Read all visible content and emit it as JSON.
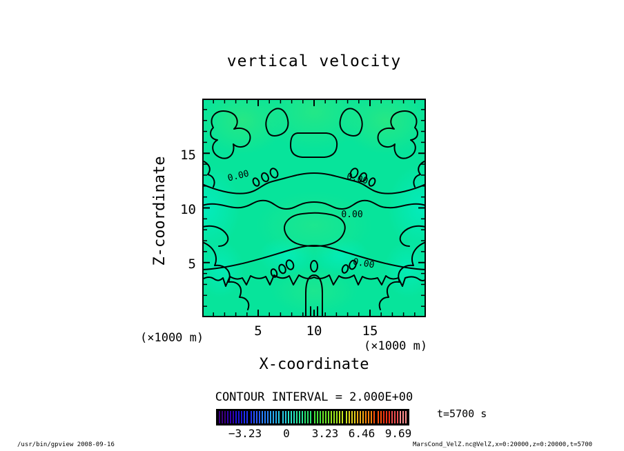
{
  "title": "vertical velocity",
  "plot": {
    "x_axis": {
      "label": "X-coordinate",
      "unit": "(×1000 m)",
      "ticks": [
        "5",
        "10",
        "15"
      ]
    },
    "y_axis": {
      "label": "Z-coordinate",
      "unit": "(×1000 m)",
      "ticks": [
        "15",
        "10",
        "5"
      ]
    },
    "contour_labels": [
      "0.00",
      "0.00",
      "0.00",
      "0.00"
    ],
    "fill_base_color": "#07e49b",
    "contour_color": "#000000"
  },
  "legend": {
    "contour_interval_text": "CONTOUR INTERVAL = 2.000E+00",
    "time_label": "t=5700 s",
    "colorbar": {
      "tick_labels": [
        "−3.23",
        "0",
        "3.23",
        "6.46",
        "9.69"
      ],
      "stripe_count": 66,
      "group_size": 11,
      "background": "#000000",
      "stops": [
        "#3C0082",
        "#3200B4",
        "#1E14DC",
        "#1E32F5",
        "#2858FF",
        "#2882FF",
        "#28AAF0",
        "#28CDE6",
        "#28E6C8",
        "#28E69B",
        "#28E66E",
        "#46E63C",
        "#6EE628",
        "#9BE61E",
        "#C8E61E",
        "#E6D21E",
        "#F0AA14",
        "#FA820A",
        "#FF500A",
        "#F03214",
        "#F05050",
        "#FF9090"
      ]
    }
  },
  "footer": {
    "left": "/usr/bin/gpview  2008-09-16",
    "right": "MarsCond_VelZ.nc@VelZ,x=0:20000,z=0:20000,t=5700"
  },
  "chart_data": {
    "type": "heatmap",
    "title": "vertical velocity",
    "xlabel": "X-coordinate",
    "ylabel": "Z-coordinate",
    "x_units": "×1000 m",
    "y_units": "×1000 m",
    "xlim": [
      0,
      20
    ],
    "ylim": [
      0,
      20
    ],
    "x_ticks": [
      5,
      10,
      15
    ],
    "y_ticks": [
      5,
      10,
      15
    ],
    "contour_interval": 2.0,
    "labeled_contour_value": 0.0,
    "colorbar_ticks": [
      -3.23,
      0,
      3.23,
      6.46,
      9.69
    ],
    "colorbar_range_estimate": [
      -6.46,
      10.76
    ],
    "time": "t=5700 s",
    "grid": false,
    "legend_position": "bottom"
  }
}
